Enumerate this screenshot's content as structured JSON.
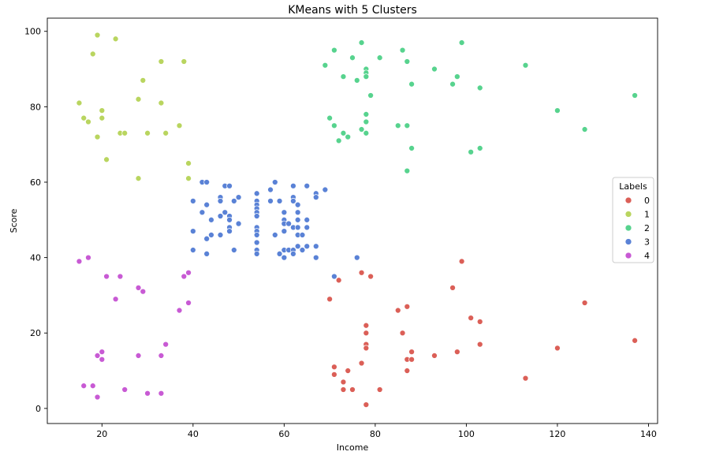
{
  "chart_data": {
    "type": "scatter",
    "title": "KMeans with 5 Clusters",
    "xlabel": "Income",
    "ylabel": "Score",
    "xlim": [
      8,
      142
    ],
    "ylim": [
      -4,
      103.5
    ],
    "xticks": [
      20,
      40,
      60,
      80,
      100,
      120,
      140
    ],
    "yticks": [
      0,
      20,
      40,
      60,
      80,
      100
    ],
    "grid": false,
    "legend": {
      "title": "Labels",
      "placement": "right"
    },
    "series": [
      {
        "name": "0",
        "color": "#db5f57",
        "points": [
          [
            70,
            29
          ],
          [
            71,
            11
          ],
          [
            71,
            9
          ],
          [
            72,
            34
          ],
          [
            73,
            5
          ],
          [
            73,
            7
          ],
          [
            74,
            10
          ],
          [
            75,
            5
          ],
          [
            77,
            12
          ],
          [
            77,
            36
          ],
          [
            78,
            22
          ],
          [
            78,
            17
          ],
          [
            78,
            20
          ],
          [
            78,
            16
          ],
          [
            78,
            1
          ],
          [
            79,
            35
          ],
          [
            81,
            5
          ],
          [
            85,
            26
          ],
          [
            86,
            20
          ],
          [
            87,
            27
          ],
          [
            87,
            13
          ],
          [
            87,
            10
          ],
          [
            88,
            13
          ],
          [
            88,
            15
          ],
          [
            93,
            14
          ],
          [
            97,
            32
          ],
          [
            98,
            15
          ],
          [
            99,
            39
          ],
          [
            101,
            24
          ],
          [
            103,
            17
          ],
          [
            103,
            23
          ],
          [
            113,
            8
          ],
          [
            120,
            16
          ],
          [
            126,
            28
          ],
          [
            137,
            18
          ]
        ]
      },
      {
        "name": "1",
        "color": "#b9d55f",
        "points": [
          [
            15,
            81
          ],
          [
            16,
            77
          ],
          [
            17,
            76
          ],
          [
            18,
            94
          ],
          [
            19,
            72
          ],
          [
            19,
            99
          ],
          [
            20,
            77
          ],
          [
            20,
            79
          ],
          [
            21,
            66
          ],
          [
            23,
            98
          ],
          [
            24,
            73
          ],
          [
            25,
            73
          ],
          [
            28,
            82
          ],
          [
            28,
            61
          ],
          [
            29,
            87
          ],
          [
            30,
            73
          ],
          [
            33,
            92
          ],
          [
            33,
            81
          ],
          [
            34,
            73
          ],
          [
            37,
            75
          ],
          [
            38,
            92
          ],
          [
            39,
            65
          ],
          [
            39,
            61
          ]
        ]
      },
      {
        "name": "2",
        "color": "#57d38e",
        "points": [
          [
            69,
            91
          ],
          [
            70,
            77
          ],
          [
            71,
            95
          ],
          [
            71,
            75
          ],
          [
            72,
            71
          ],
          [
            73,
            88
          ],
          [
            73,
            73
          ],
          [
            74,
            72
          ],
          [
            75,
            93
          ],
          [
            76,
            87
          ],
          [
            77,
            97
          ],
          [
            77,
            74
          ],
          [
            78,
            90
          ],
          [
            78,
            89
          ],
          [
            78,
            88
          ],
          [
            78,
            78
          ],
          [
            78,
            76
          ],
          [
            78,
            73
          ],
          [
            79,
            83
          ],
          [
            81,
            93
          ],
          [
            85,
            75
          ],
          [
            86,
            95
          ],
          [
            87,
            92
          ],
          [
            87,
            75
          ],
          [
            87,
            63
          ],
          [
            88,
            86
          ],
          [
            88,
            69
          ],
          [
            93,
            90
          ],
          [
            97,
            86
          ],
          [
            98,
            88
          ],
          [
            99,
            97
          ],
          [
            101,
            68
          ],
          [
            103,
            85
          ],
          [
            103,
            69
          ],
          [
            113,
            91
          ],
          [
            120,
            79
          ],
          [
            126,
            74
          ],
          [
            137,
            83
          ]
        ]
      },
      {
        "name": "3",
        "color": "#5a82d6",
        "points": [
          [
            40,
            55
          ],
          [
            40,
            47
          ],
          [
            40,
            42
          ],
          [
            42,
            60
          ],
          [
            42,
            52
          ],
          [
            43,
            60
          ],
          [
            43,
            54
          ],
          [
            43,
            45
          ],
          [
            43,
            41
          ],
          [
            44,
            50
          ],
          [
            44,
            46
          ],
          [
            46,
            56
          ],
          [
            46,
            55
          ],
          [
            46,
            51
          ],
          [
            46,
            46
          ],
          [
            47,
            59
          ],
          [
            47,
            52
          ],
          [
            48,
            59
          ],
          [
            48,
            51
          ],
          [
            48,
            50
          ],
          [
            48,
            48
          ],
          [
            48,
            47
          ],
          [
            49,
            55
          ],
          [
            49,
            42
          ],
          [
            50,
            56
          ],
          [
            50,
            49
          ],
          [
            54,
            57
          ],
          [
            54,
            55
          ],
          [
            54,
            54
          ],
          [
            54,
            53
          ],
          [
            54,
            52
          ],
          [
            54,
            51
          ],
          [
            54,
            48
          ],
          [
            54,
            47
          ],
          [
            54,
            46
          ],
          [
            54,
            44
          ],
          [
            54,
            42
          ],
          [
            54,
            41
          ],
          [
            57,
            58
          ],
          [
            57,
            55
          ],
          [
            58,
            60
          ],
          [
            58,
            46
          ],
          [
            59,
            55
          ],
          [
            59,
            41
          ],
          [
            60,
            52
          ],
          [
            60,
            50
          ],
          [
            60,
            49
          ],
          [
            60,
            47
          ],
          [
            60,
            42
          ],
          [
            60,
            40
          ],
          [
            61,
            49
          ],
          [
            61,
            42
          ],
          [
            62,
            59
          ],
          [
            62,
            56
          ],
          [
            62,
            55
          ],
          [
            62,
            48
          ],
          [
            62,
            42
          ],
          [
            62,
            41
          ],
          [
            63,
            54
          ],
          [
            63,
            52
          ],
          [
            63,
            50
          ],
          [
            63,
            48
          ],
          [
            63,
            46
          ],
          [
            63,
            43
          ],
          [
            64,
            46
          ],
          [
            64,
            42
          ],
          [
            65,
            59
          ],
          [
            65,
            50
          ],
          [
            65,
            48
          ],
          [
            65,
            43
          ],
          [
            67,
            57
          ],
          [
            67,
            56
          ],
          [
            67,
            43
          ],
          [
            67,
            40
          ],
          [
            69,
            58
          ],
          [
            71,
            35
          ],
          [
            76,
            40
          ]
        ]
      },
      {
        "name": "4",
        "color": "#c85ad4",
        "points": [
          [
            15,
            39
          ],
          [
            16,
            6
          ],
          [
            17,
            40
          ],
          [
            18,
            6
          ],
          [
            19,
            3
          ],
          [
            19,
            14
          ],
          [
            20,
            15
          ],
          [
            20,
            13
          ],
          [
            21,
            35
          ],
          [
            23,
            29
          ],
          [
            24,
            35
          ],
          [
            25,
            5
          ],
          [
            28,
            14
          ],
          [
            28,
            32
          ],
          [
            29,
            31
          ],
          [
            30,
            4
          ],
          [
            33,
            4
          ],
          [
            33,
            14
          ],
          [
            34,
            17
          ],
          [
            37,
            26
          ],
          [
            38,
            35
          ],
          [
            39,
            36
          ],
          [
            39,
            28
          ]
        ]
      }
    ]
  }
}
